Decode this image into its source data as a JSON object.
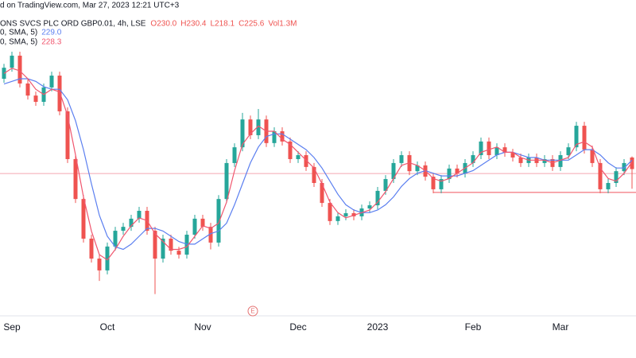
{
  "chart_data": {
    "type": "candlestick",
    "header": {
      "source": "d on TradingView.com, Mar 27, 2023 12:21 UTC+3",
      "symbol": "ONS SVCS PLC ORD GBP0.01, 4h, LSE",
      "ohlc_labels": [
        "O230.0",
        "H230.4",
        "L218.1",
        "C225.6"
      ],
      "volume": "Vol1.3M"
    },
    "categories": [
      null,
      "Sep",
      null,
      null,
      null,
      null,
      null,
      null,
      null,
      null,
      null,
      null,
      null,
      "Oct",
      null,
      null,
      null,
      null,
      null,
      null,
      null,
      null,
      null,
      null,
      null,
      "Nov",
      null,
      null,
      null,
      null,
      null,
      null,
      null,
      null,
      null,
      null,
      null,
      "Dec",
      null,
      null,
      null,
      null,
      null,
      null,
      null,
      null,
      null,
      "2023",
      null,
      null,
      null,
      null,
      null,
      null,
      null,
      null,
      null,
      null,
      null,
      "Feb",
      null,
      null,
      null,
      null,
      null,
      null,
      null,
      null,
      null,
      null,
      "Mar",
      null,
      null,
      null,
      null,
      null,
      null,
      null,
      null,
      null
    ],
    "open": [
      260.0,
      264.2,
      268.8,
      258.2,
      253.6,
      251.2,
      256.7,
      261.2,
      247.6,
      229.4,
      214.2,
      199.1,
      191.5,
      187.0,
      196.1,
      202.1,
      203.6,
      206.7,
      209.7,
      202.1,
      191.5,
      199.1,
      194.5,
      193.0,
      200.6,
      206.7,
      203.6,
      197.6,
      214.2,
      227.9,
      233.9,
      244.5,
      238.5,
      244.5,
      235.5,
      240.0,
      236.1,
      229.4,
      230.9,
      226.4,
      220.3,
      212.7,
      205.8,
      207.6,
      208.8,
      207.6,
      210.6,
      211.8,
      217.3,
      221.8,
      227.9,
      230.9,
      224.8,
      227.0,
      222.7,
      217.9,
      221.8,
      225.8,
      223.9,
      227.9,
      230.9,
      236.1,
      230.9,
      233.9,
      231.8,
      230.0,
      227.9,
      230.0,
      227.9,
      229.4,
      226.4,
      230.9,
      233.9,
      242.1,
      233.0,
      227.9,
      217.9,
      220.3,
      224.8,
      230.0
    ],
    "high": [
      265.7,
      270.3,
      270.3,
      259.7,
      255.1,
      258.2,
      262.7,
      262.7,
      249.1,
      230.9,
      215.7,
      200.6,
      193.0,
      197.6,
      203.6,
      205.1,
      208.2,
      211.2,
      211.2,
      203.6,
      200.6,
      200.6,
      196.0,
      202.1,
      208.2,
      208.2,
      205.1,
      215.7,
      229.4,
      235.4,
      247.0,
      246.0,
      248.5,
      246.0,
      241.5,
      241.5,
      237.6,
      232.4,
      232.4,
      227.9,
      221.8,
      214.2,
      209.1,
      210.3,
      210.3,
      212.1,
      213.3,
      218.8,
      223.3,
      229.4,
      232.4,
      232.4,
      228.5,
      228.5,
      224.2,
      223.3,
      227.3,
      227.3,
      229.4,
      232.4,
      237.6,
      237.6,
      235.4,
      235.4,
      233.3,
      231.5,
      231.5,
      231.5,
      230.9,
      230.9,
      232.4,
      235.4,
      243.6,
      243.6,
      234.5,
      229.4,
      221.8,
      226.3,
      229.4,
      230.4
    ],
    "low": [
      258.5,
      262.7,
      256.7,
      252.1,
      249.7,
      249.7,
      255.2,
      246.1,
      227.9,
      212.7,
      197.6,
      190.0,
      183.0,
      185.5,
      194.6,
      200.6,
      202.1,
      205.2,
      200.6,
      178.0,
      190.0,
      193.0,
      191.5,
      191.5,
      199.1,
      202.1,
      195.0,
      196.1,
      212.7,
      226.4,
      232.4,
      237.0,
      237.0,
      234.0,
      234.0,
      234.6,
      227.9,
      227.9,
      224.9,
      218.8,
      211.2,
      204.3,
      204.3,
      206.1,
      206.1,
      206.1,
      209.1,
      210.3,
      215.8,
      220.3,
      226.4,
      223.3,
      223.3,
      221.2,
      216.4,
      216.4,
      220.3,
      222.4,
      222.4,
      226.4,
      229.4,
      229.4,
      229.4,
      230.3,
      228.5,
      226.4,
      226.4,
      226.4,
      226.4,
      224.9,
      224.9,
      229.4,
      232.4,
      231.5,
      226.4,
      216.4,
      216.4,
      218.8,
      223.3,
      218.1
    ],
    "close": [
      264.2,
      268.8,
      258.2,
      253.6,
      251.2,
      256.7,
      261.2,
      247.6,
      229.4,
      214.2,
      199.1,
      191.5,
      187.0,
      196.1,
      202.1,
      203.6,
      206.7,
      209.7,
      202.1,
      191.5,
      199.1,
      194.5,
      193.0,
      200.6,
      206.7,
      203.6,
      197.6,
      214.2,
      227.9,
      233.9,
      244.5,
      238.5,
      244.5,
      235.5,
      240.0,
      236.1,
      229.4,
      230.9,
      226.4,
      220.3,
      212.7,
      205.8,
      207.6,
      208.8,
      207.6,
      210.6,
      211.8,
      217.3,
      221.8,
      227.9,
      230.9,
      224.8,
      227.0,
      222.7,
      217.9,
      221.8,
      225.8,
      223.9,
      227.9,
      230.9,
      236.1,
      230.9,
      233.9,
      231.8,
      230.0,
      227.9,
      230.0,
      227.9,
      229.4,
      226.4,
      230.9,
      233.9,
      242.1,
      233.0,
      227.9,
      217.9,
      220.3,
      224.8,
      227.9,
      225.6
    ],
    "up_color": "#26a69a",
    "down_color": "#ef5350",
    "ylim": [
      170,
      290
    ],
    "series": [
      {
        "name": "0, SMA, 5)",
        "color": "#5b7ff0",
        "value_label": "229.0",
        "values": [
          258,
          259,
          260,
          260,
          259,
          257,
          256,
          256,
          252,
          244,
          233,
          220,
          208,
          200,
          196,
          195,
          197,
          200,
          203,
          203,
          202,
          200,
          198,
          197,
          197,
          199,
          201,
          202,
          205,
          212,
          220,
          228,
          234,
          238,
          239,
          239,
          237,
          235,
          233,
          230,
          226,
          221,
          216,
          212,
          210,
          209,
          209,
          210,
          212,
          215,
          219,
          222,
          224,
          225,
          224,
          223,
          223,
          223,
          224,
          225,
          227,
          229,
          231,
          232,
          232,
          231,
          230,
          230,
          229,
          229,
          229,
          229,
          231,
          233,
          233,
          231,
          228,
          226,
          226,
          229.0
        ]
      },
      {
        "name": "0, SMA, 5)",
        "color": "#f0566e",
        "value_label": "228.3",
        "values": [
          262,
          264,
          263,
          260,
          256,
          254,
          256,
          255,
          246,
          231,
          215,
          202,
          193,
          191,
          195,
          200,
          204,
          207,
          206,
          201,
          198,
          195,
          195,
          196,
          200,
          204,
          203,
          205,
          213,
          225,
          235,
          239,
          242,
          240,
          240,
          237,
          235,
          232,
          229,
          226,
          220,
          213,
          209,
          207,
          208,
          209,
          210,
          213,
          217,
          222,
          227,
          228,
          227,
          225,
          222,
          221,
          222,
          224,
          226,
          228,
          232,
          233,
          234,
          232,
          232,
          230,
          229,
          229,
          229,
          228,
          229,
          230,
          235,
          236,
          234,
          226,
          222,
          221,
          224,
          228.3
        ]
      }
    ],
    "hlines": [
      {
        "value": 223.9,
        "color": "#f4a7b0",
        "start": 0
      },
      {
        "value": 216.7,
        "color": "#f0545e",
        "start": 54
      }
    ],
    "event_marker": {
      "label": "E",
      "index": 31
    }
  }
}
